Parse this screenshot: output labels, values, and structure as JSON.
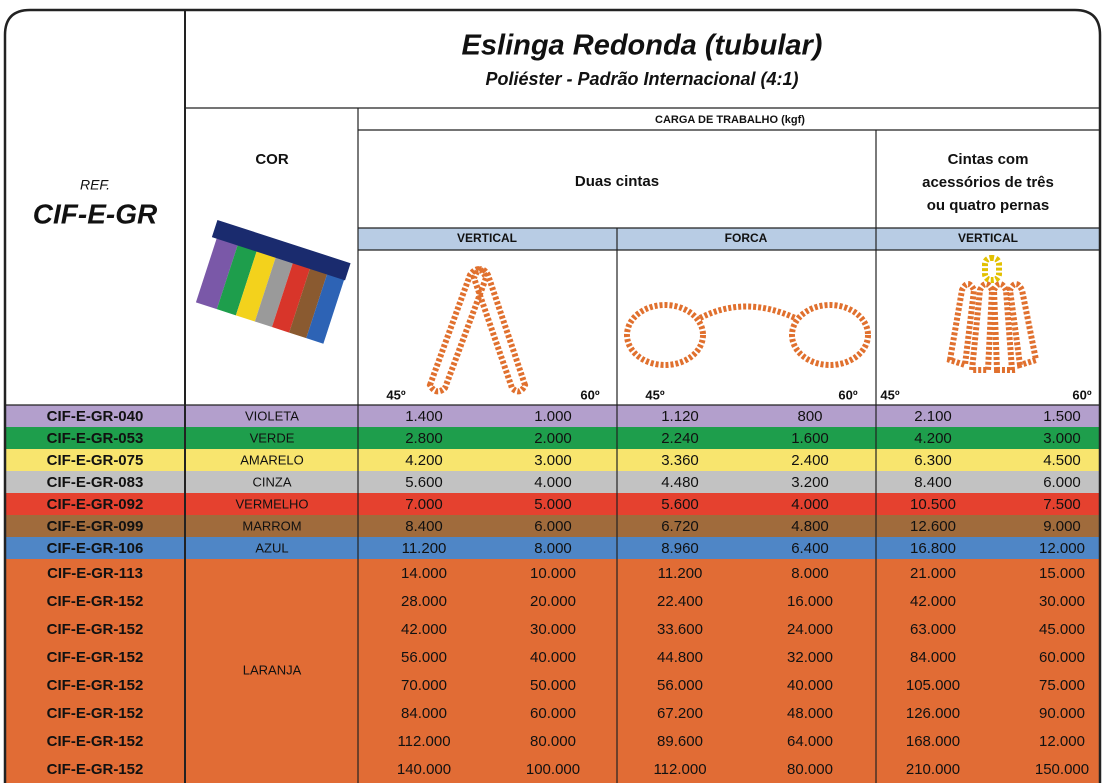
{
  "header": {
    "title": "Eslinga Redonda (tubular)",
    "subtitle": "Poliéster - Padrão Internacional (4:1)",
    "ref_label": "REF.",
    "ref_code": "CIF-E-GR",
    "cor": "COR",
    "carga": "CARGA DE TRABALHO (kgf)",
    "duas_cintas": "Duas cintas",
    "tres_quatro": [
      "Cintas com",
      "acessórios de três",
      "ou quatro pernas"
    ],
    "modes": [
      "VERTICAL",
      "FORCA",
      "VERTICAL"
    ],
    "angles": [
      "45º",
      "60º",
      "45º",
      "60º",
      "45º",
      "60º"
    ]
  },
  "table": {
    "rows": [
      {
        "ref": "CIF-E-GR-040",
        "cor": "VIOLETA",
        "bg": "#b39fcc",
        "values": [
          "1.400",
          "1.000",
          "1.120",
          "800",
          "2.100",
          "1.500"
        ]
      },
      {
        "ref": "CIF-E-GR-053",
        "cor": "VERDE",
        "bg": "#1e9e4c",
        "values": [
          "2.800",
          "2.000",
          "2.240",
          "1.600",
          "4.200",
          "3.000"
        ]
      },
      {
        "ref": "CIF-E-GR-075",
        "cor": "AMARELO",
        "bg": "#f8e56e",
        "values": [
          "4.200",
          "3.000",
          "3.360",
          "2.400",
          "6.300",
          "4.500"
        ]
      },
      {
        "ref": "CIF-E-GR-083",
        "cor": "CINZA",
        "bg": "#c2c2c2",
        "values": [
          "5.600",
          "4.000",
          "4.480",
          "3.200",
          "8.400",
          "6.000"
        ]
      },
      {
        "ref": "CIF-E-GR-092",
        "cor": "VERMELHO",
        "bg": "#e5412f",
        "values": [
          "7.000",
          "5.000",
          "5.600",
          "4.000",
          "10.500",
          "7.500"
        ]
      },
      {
        "ref": "CIF-E-GR-099",
        "cor": "MARROM",
        "bg": "#a06b3c",
        "values": [
          "8.400",
          "6.000",
          "6.720",
          "4.800",
          "12.600",
          "9.000"
        ]
      },
      {
        "ref": "CIF-E-GR-106",
        "cor": "AZUL",
        "bg": "#4f86c6",
        "values": [
          "11.200",
          "8.000",
          "8.960",
          "6.400",
          "16.800",
          "12.000"
        ]
      }
    ],
    "laranja": {
      "cor": "LARANJA",
      "bg": "#e16c35",
      "rows": [
        {
          "ref": "CIF-E-GR-113",
          "values": [
            "14.000",
            "10.000",
            "11.200",
            "8.000",
            "21.000",
            "15.000"
          ]
        },
        {
          "ref": "CIF-E-GR-152",
          "values": [
            "28.000",
            "20.000",
            "22.400",
            "16.000",
            "42.000",
            "30.000"
          ]
        },
        {
          "ref": "CIF-E-GR-152",
          "values": [
            "42.000",
            "30.000",
            "33.600",
            "24.000",
            "63.000",
            "45.000"
          ]
        },
        {
          "ref": "CIF-E-GR-152",
          "values": [
            "56.000",
            "40.000",
            "44.800",
            "32.000",
            "84.000",
            "60.000"
          ]
        },
        {
          "ref": "CIF-E-GR-152",
          "values": [
            "70.000",
            "50.000",
            "56.000",
            "40.000",
            "105.000",
            "75.000"
          ]
        },
        {
          "ref": "CIF-E-GR-152",
          "values": [
            "84.000",
            "60.000",
            "67.200",
            "48.000",
            "126.000",
            "90.000"
          ]
        },
        {
          "ref": "CIF-E-GR-152",
          "values": [
            "112.000",
            "80.000",
            "89.600",
            "64.000",
            "168.000",
            "12.000"
          ]
        },
        {
          "ref": "CIF-E-GR-152",
          "values": [
            "140.000",
            "100.000",
            "112.000",
            "80.000",
            "210.000",
            "150.000"
          ]
        }
      ]
    }
  }
}
